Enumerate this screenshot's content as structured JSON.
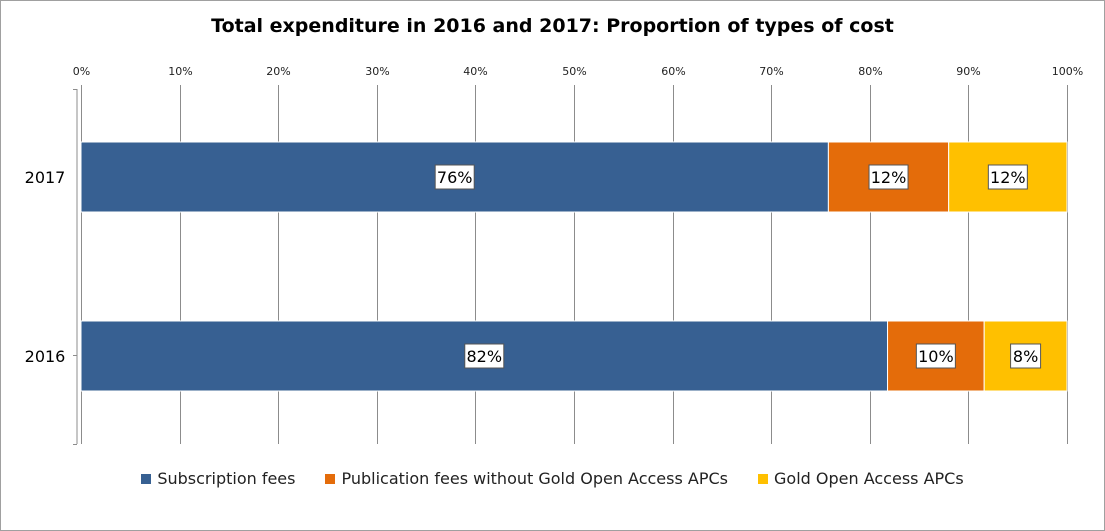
{
  "chart_data": {
    "type": "bar",
    "orientation": "horizontal",
    "stacked": true,
    "title": "Total expenditure in 2016 and 2017: Proportion of types of cost",
    "xlabel": "",
    "ylabel": "",
    "xlim": [
      0,
      100
    ],
    "x_ticks": [
      "0%",
      "10%",
      "20%",
      "30%",
      "40%",
      "50%",
      "60%",
      "70%",
      "80%",
      "90%",
      "100%"
    ],
    "tick_position": "top",
    "grid": true,
    "legend_position": "bottom",
    "categories": [
      "2017",
      "2016"
    ],
    "series": [
      {
        "name": "Subscription fees",
        "color": "#376092",
        "values": [
          75.8,
          81.8
        ],
        "labels": [
          "76%",
          "82%"
        ]
      },
      {
        "name": "Publication fees without Gold Open Access APCs",
        "color": "#E46C0A",
        "values": [
          12.2,
          9.8
        ],
        "labels": [
          "12%",
          "10%"
        ]
      },
      {
        "name": "Gold Open Access APCs",
        "color": "#FFC000",
        "values": [
          12.0,
          8.4
        ],
        "labels": [
          "12%",
          "8%"
        ]
      }
    ]
  }
}
